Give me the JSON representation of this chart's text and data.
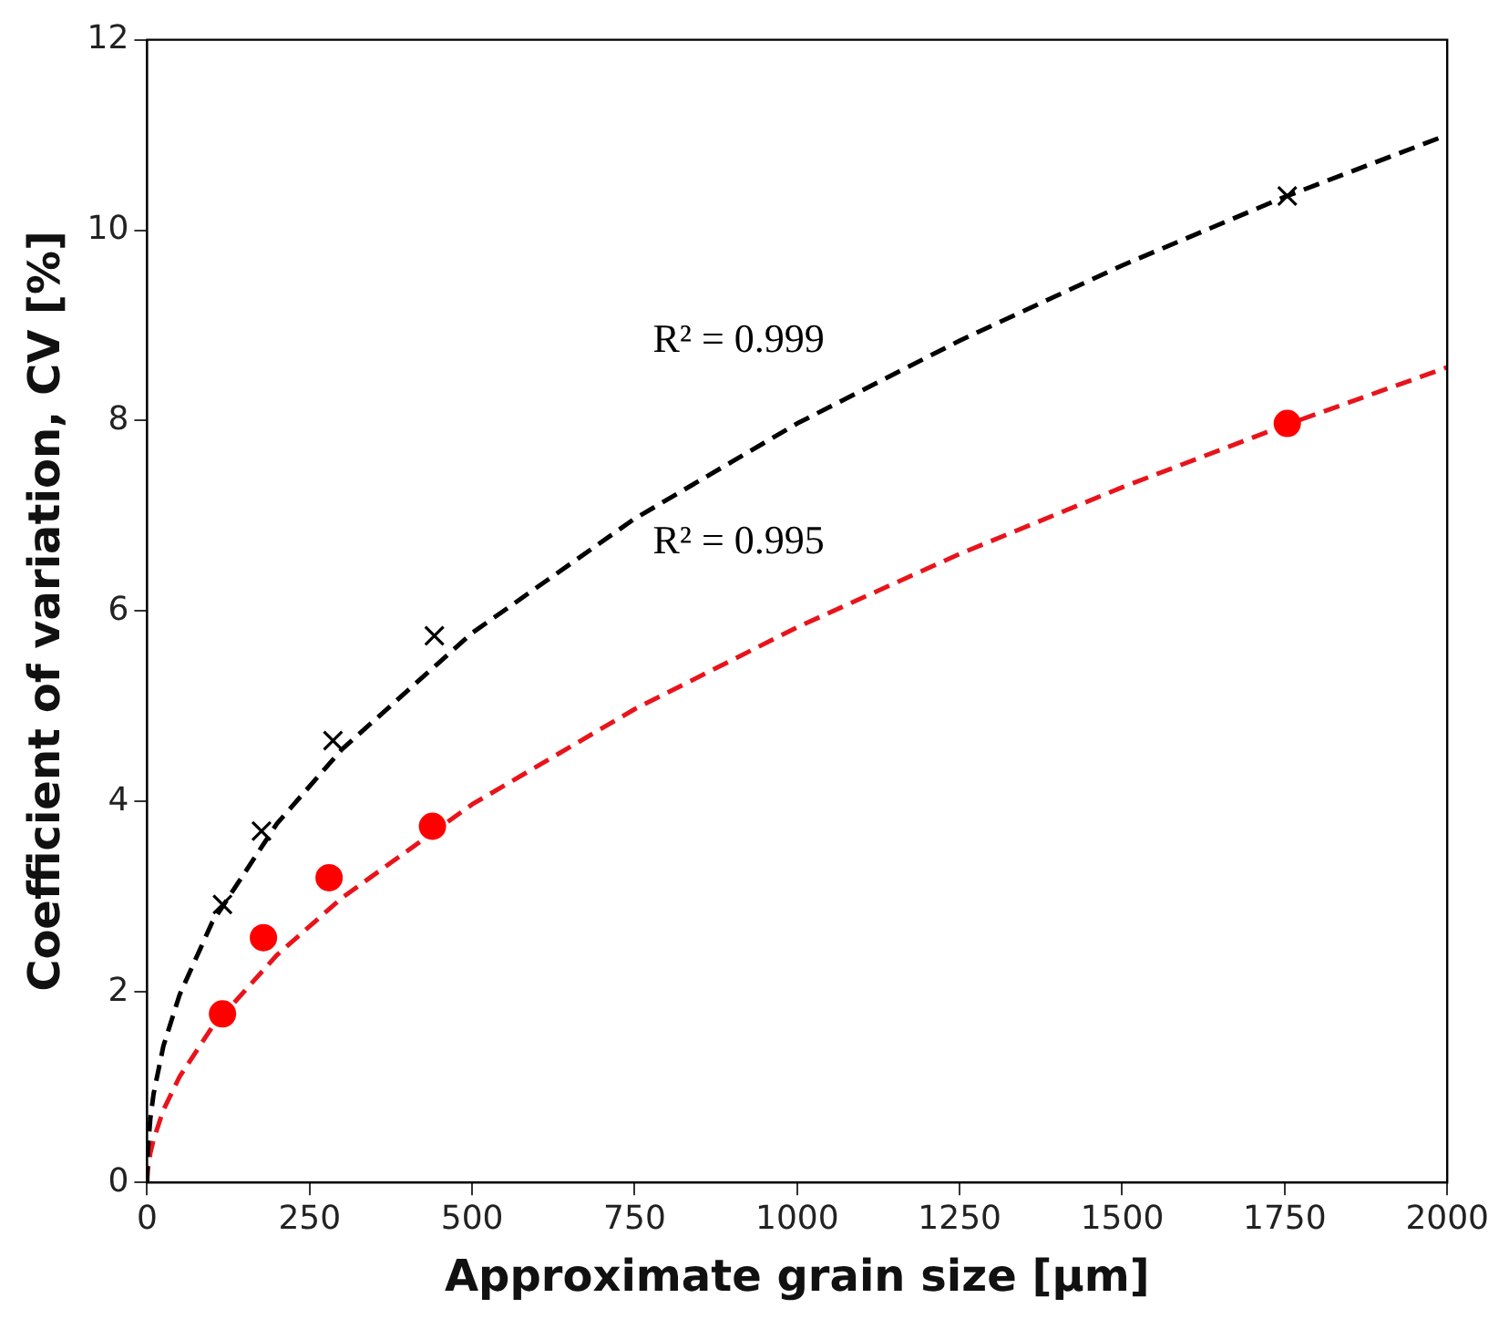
{
  "chart_data": {
    "type": "scatter",
    "xlabel": "Approximate grain size [μm]",
    "ylabel": "Coefficient of variation, CV [%]",
    "xlim": [
      0,
      2000
    ],
    "xticks": [
      0,
      250,
      500,
      750,
      1000,
      1250,
      1500,
      1750,
      2000
    ],
    "ylim": [
      0,
      12
    ],
    "yticks": [
      0,
      2,
      4,
      6,
      8,
      10,
      12
    ],
    "grid": false,
    "legend": false,
    "series": [
      {
        "type": "scatter",
        "color": "#000000",
        "marker": "cross",
        "x": [
          116,
          176,
          286,
          442,
          1754
        ],
        "values": [
          2.92,
          3.69,
          4.64,
          5.74,
          10.36
        ]
      },
      {
        "type": "scatter",
        "color": "#ff0000",
        "marker": "circle",
        "x": [
          116,
          179,
          280,
          439,
          1754
        ],
        "values": [
          1.77,
          2.57,
          3.2,
          3.74,
          7.97
        ]
      },
      {
        "type": "line",
        "color": "#000000",
        "marker": "none",
        "line_style": "dashed",
        "x": [
          0,
          1,
          5,
          10,
          25,
          50,
          100,
          200,
          300,
          500,
          750,
          1000,
          1250,
          1500,
          1750,
          2000
        ],
        "values": [
          0,
          0.32,
          0.67,
          0.93,
          1.43,
          1.97,
          2.73,
          3.77,
          4.55,
          5.77,
          6.97,
          7.97,
          8.84,
          9.63,
          10.35,
          11.0
        ]
      },
      {
        "type": "line",
        "color": "#e8141b",
        "marker": "none",
        "line_style": "dashed",
        "x": [
          0,
          1,
          5,
          10,
          25,
          50,
          100,
          200,
          300,
          500,
          750,
          1000,
          1250,
          1500,
          1750,
          2000
        ],
        "values": [
          0,
          0.13,
          0.31,
          0.45,
          0.76,
          1.11,
          1.63,
          2.39,
          2.99,
          3.97,
          4.97,
          5.83,
          6.6,
          7.3,
          7.95,
          8.56
        ]
      }
    ],
    "annotations": [
      "R² = 0.999",
      "R² = 0.995"
    ]
  }
}
